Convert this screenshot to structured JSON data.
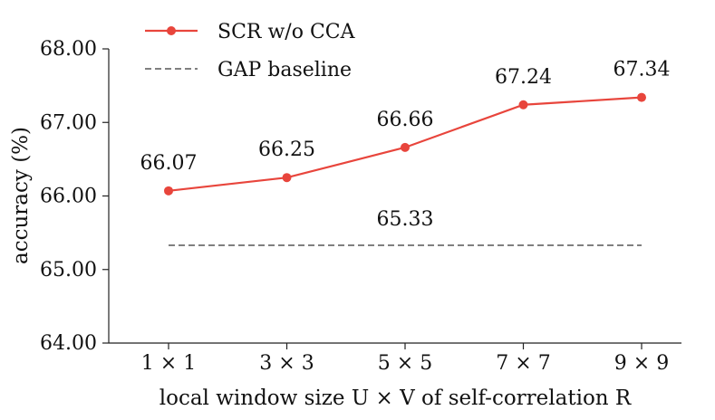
{
  "chart_data": {
    "type": "line",
    "categories": [
      "1 × 1",
      "3 × 3",
      "5 × 5",
      "7 × 7",
      "9 × 9"
    ],
    "series": [
      {
        "name": "SCR w/o CCA",
        "values": [
          66.07,
          66.25,
          66.66,
          67.24,
          67.34
        ],
        "labels": [
          "66.07",
          "66.25",
          "66.66",
          "67.24",
          "67.34"
        ],
        "color": "#e8453c",
        "style": "solid",
        "marker": "circle"
      },
      {
        "name": "GAP baseline",
        "values": [
          65.33,
          65.33,
          65.33,
          65.33,
          65.33
        ],
        "label": "65.33",
        "color": "#808080",
        "style": "dashed"
      }
    ],
    "xlabel": "local window size U × V of self-correlation R",
    "ylabel": "accuracy (%)",
    "ylim": [
      64.0,
      68.0
    ],
    "yticks": [
      "64.00",
      "65.00",
      "66.00",
      "67.00",
      "68.00"
    ],
    "legend_position": "top-left",
    "grid": false
  }
}
